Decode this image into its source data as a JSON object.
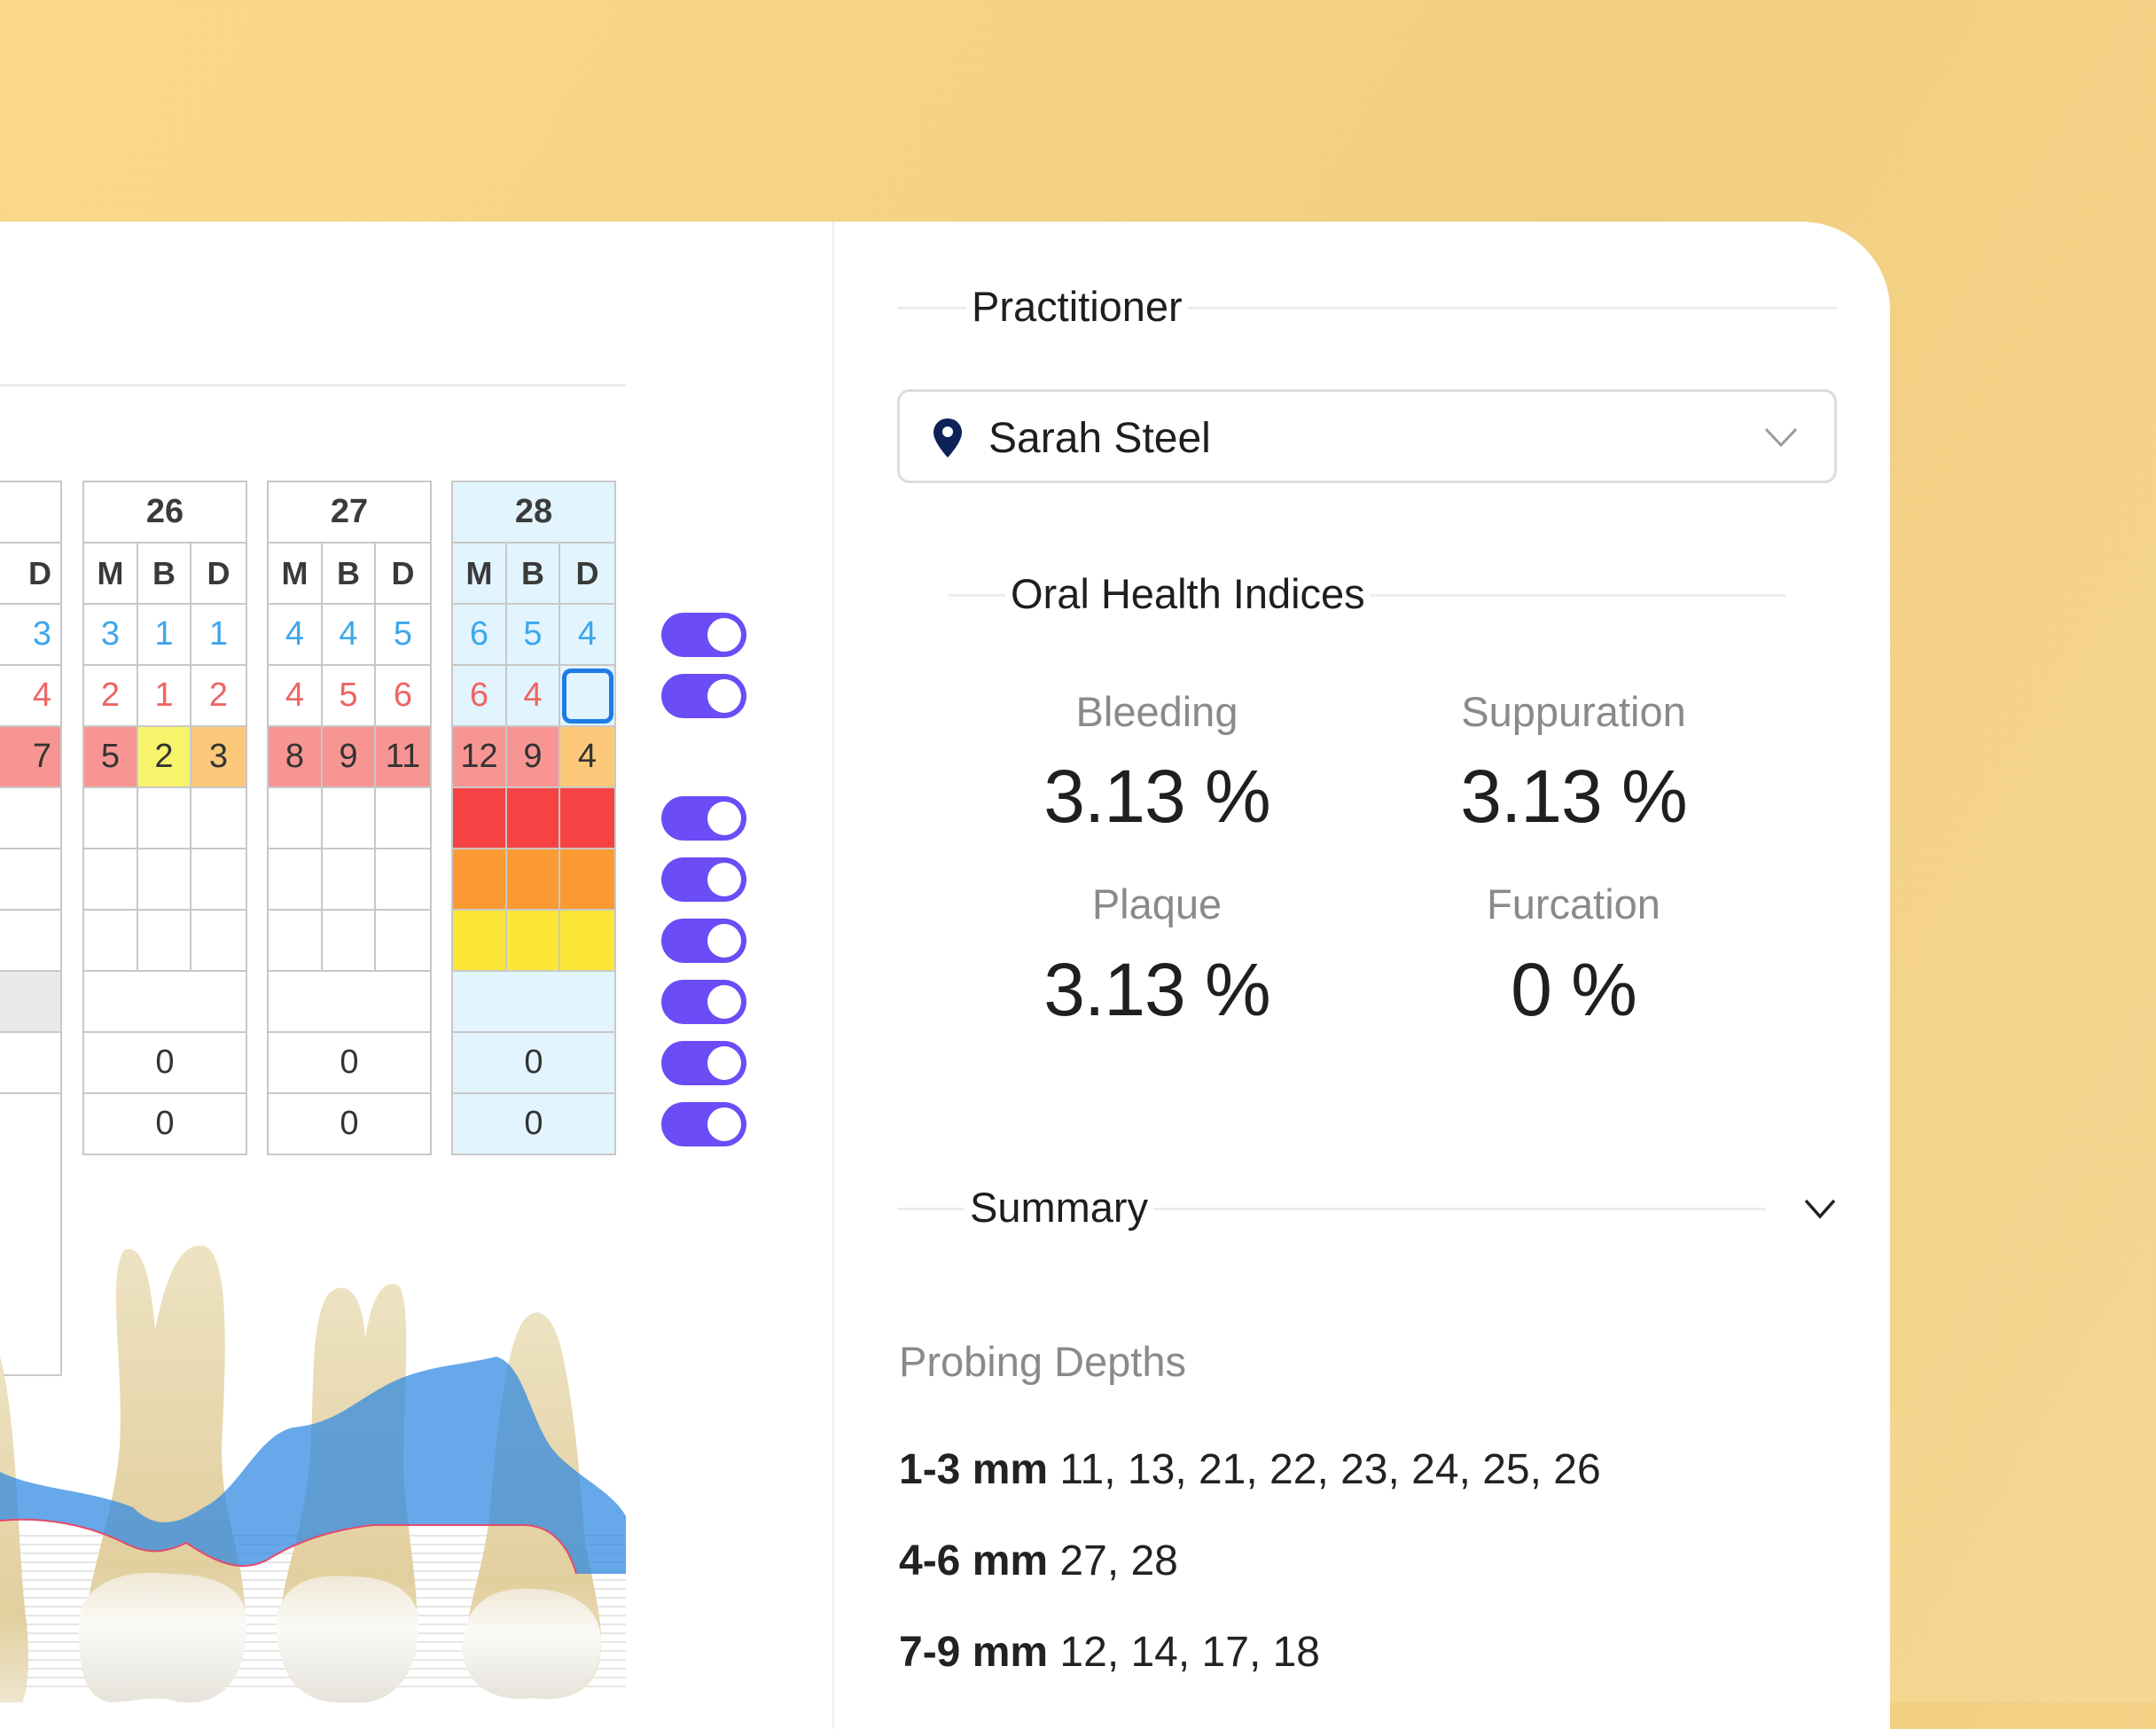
{
  "chart": {
    "partial_header": "D",
    "partial_values": [
      "3",
      "4",
      "7"
    ],
    "teeth": [
      {
        "number": "26",
        "headers": [
          "M",
          "B",
          "D"
        ],
        "row1": [
          "3",
          "1",
          "1"
        ],
        "row2": [
          "2",
          "1",
          "2"
        ],
        "row3": [
          "5",
          "2",
          "3"
        ],
        "furcation": "0",
        "mobility": "0"
      },
      {
        "number": "27",
        "headers": [
          "M",
          "B",
          "D"
        ],
        "row1": [
          "4",
          "4",
          "5"
        ],
        "row2": [
          "4",
          "5",
          "6"
        ],
        "row3": [
          "8",
          "9",
          "11"
        ],
        "furcation": "0",
        "mobility": "0"
      },
      {
        "number": "28",
        "headers": [
          "M",
          "B",
          "D"
        ],
        "row1": [
          "6",
          "5",
          "4"
        ],
        "row2": [
          "6",
          "4",
          ""
        ],
        "row3": [
          "12",
          "9",
          "4"
        ],
        "furcation": "0",
        "mobility": "0"
      }
    ],
    "colors": {
      "toggle": "#6b4cf6",
      "depth_low": "#f7f36a",
      "depth_mid": "#fcc97a",
      "depth_high": "#f79593",
      "bleeding": "#f54343",
      "suppuration": "#fb9a32",
      "plaque": "#fbe637",
      "selected_column": "#e2f4fd"
    }
  },
  "practitioner": {
    "section_label": "Practitioner",
    "selected": "Sarah Steel",
    "icon": "location-pin-icon"
  },
  "indices": {
    "section_label": "Oral Health Indices",
    "bleeding": {
      "label": "Bleeding",
      "value": "3.13 %"
    },
    "suppuration": {
      "label": "Suppuration",
      "value": "3.13 %"
    },
    "plaque": {
      "label": "Plaque",
      "value": "3.13 %"
    },
    "furcation": {
      "label": "Furcation",
      "value": "0 %"
    }
  },
  "summary": {
    "section_label": "Summary",
    "probing_title": "Probing Depths",
    "rows": [
      {
        "range": "1-3 mm",
        "teeth": "11, 13, 21, 22, 23, 24, 25, 26"
      },
      {
        "range": "4-6 mm",
        "teeth": "27, 28"
      },
      {
        "range": "7-9 mm",
        "teeth": "12, 14, 17, 18"
      }
    ]
  }
}
